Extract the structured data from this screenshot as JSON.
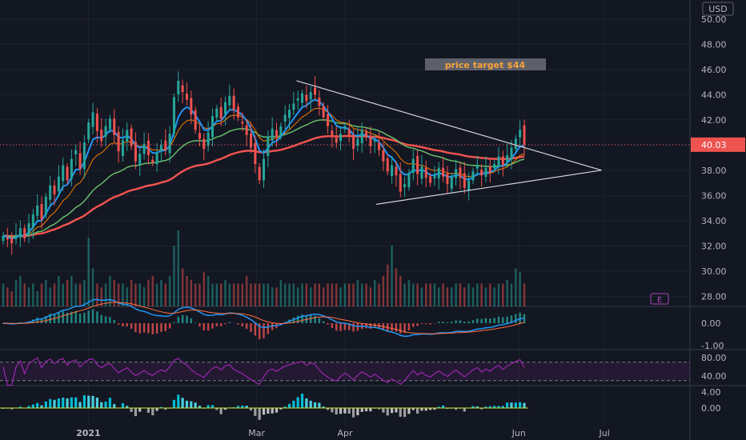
{
  "currency_label": "USD",
  "annotation": {
    "text": "price target $44",
    "color": "#f7a23b",
    "bg": "#5d606b"
  },
  "earnings_badge": {
    "text": "E",
    "color": "#ab47bc"
  },
  "months": [
    "2021",
    "Mar",
    "Apr",
    "Jun",
    "Jul"
  ],
  "colors": {
    "up": "#26a69a",
    "down": "#ef5350",
    "ema_fast": "#2196f3",
    "ema_mid": "#f57c00",
    "sma_green": "#66bb6a",
    "sma_red": "#ef5350",
    "macd": "#2196f3",
    "signal": "#ff7043",
    "rsi": "#9c27b0",
    "osc_up": "#00bcd4",
    "osc_down": "#9e9e9e"
  },
  "panels": {
    "price": {
      "ticks": [
        "50.00",
        "48.00",
        "46.00",
        "44.00",
        "42.00",
        "40.00",
        "38.00",
        "36.00",
        "34.00",
        "32.00",
        "30.00",
        "28.00"
      ],
      "last": "40.03"
    },
    "macd": {
      "ticks": [
        "0.00",
        "-1.00"
      ]
    },
    "rsi": {
      "ticks": [
        "80.00",
        "40.00"
      ]
    },
    "osc": {
      "ticks": [
        "4.00",
        "0.00"
      ]
    }
  },
  "chart_data": {
    "type": "candlestick",
    "symbol_currency": "USD",
    "x_range": [
      "2020-12-01",
      "2021-07-31"
    ],
    "ylim": [
      27.2,
      51
    ],
    "last_price": 40.03,
    "trendlines": [
      {
        "from": [
          "2021-03-15",
          45.1
        ],
        "to": [
          "2021-06-30",
          38.0
        ]
      },
      {
        "from": [
          "2021-04-12",
          35.3
        ],
        "to": [
          "2021-06-30",
          38.0
        ]
      }
    ],
    "closes": [
      32.8,
      32.5,
      32.2,
      32.9,
      33.4,
      32.6,
      33.8,
      34.5,
      35.2,
      34.1,
      35.9,
      36.8,
      36.1,
      37.5,
      38.4,
      37.2,
      38.9,
      39.6,
      38.1,
      40.2,
      41.8,
      42.6,
      41.1,
      40.3,
      41.5,
      42.1,
      40.8,
      39.5,
      40.4,
      41.2,
      39.9,
      38.7,
      39.3,
      40.1,
      39.2,
      38.6,
      39.4,
      40.0,
      39.6,
      40.9,
      43.8,
      45.1,
      44.2,
      43.6,
      42.4,
      41.2,
      40.5,
      39.7,
      41.0,
      42.3,
      42.9,
      42.1,
      43.4,
      43.9,
      42.8,
      42.2,
      41.7,
      40.8,
      39.8,
      38.5,
      37.2,
      38.9,
      40.7,
      41.3,
      40.6,
      41.5,
      42.4,
      42.8,
      43.3,
      43.7,
      44.1,
      43.5,
      44.2,
      44.0,
      43.1,
      42.2,
      41.5,
      40.7,
      40.2,
      40.9,
      41.5,
      40.8,
      39.7,
      40.5,
      41.2,
      40.6,
      39.9,
      40.4,
      39.6,
      38.7,
      37.9,
      38.4,
      37.6,
      36.3,
      36.9,
      37.8,
      38.9,
      37.7,
      38.3,
      37.4,
      37.0,
      37.6,
      38.2,
      37.5,
      36.9,
      37.5,
      38.1,
      37.4,
      36.6,
      37.2,
      37.9,
      38.4,
      37.6,
      38.2,
      37.8,
      38.5,
      39.1,
      38.4,
      39.2,
      39.8,
      40.5,
      41.2,
      40.03
    ],
    "volume_relative": [
      0.3,
      0.25,
      0.2,
      0.35,
      0.4,
      0.3,
      0.25,
      0.3,
      0.2,
      0.3,
      0.35,
      0.25,
      0.3,
      0.4,
      0.3,
      0.35,
      0.4,
      0.3,
      0.3,
      0.35,
      0.9,
      0.5,
      0.3,
      0.25,
      0.3,
      0.4,
      0.35,
      0.3,
      0.3,
      0.25,
      0.35,
      0.3,
      0.3,
      0.25,
      0.35,
      0.4,
      0.3,
      0.35,
      0.3,
      0.4,
      0.8,
      1.0,
      0.5,
      0.4,
      0.35,
      0.3,
      0.3,
      0.45,
      0.4,
      0.3,
      0.3,
      0.3,
      0.35,
      0.3,
      0.3,
      0.3,
      0.3,
      0.4,
      0.3,
      0.3,
      0.3,
      0.3,
      0.3,
      0.25,
      0.25,
      0.35,
      0.3,
      0.3,
      0.3,
      0.25,
      0.3,
      0.3,
      0.25,
      0.3,
      0.3,
      0.25,
      0.3,
      0.3,
      0.3,
      0.25,
      0.3,
      0.3,
      0.3,
      0.35,
      0.3,
      0.3,
      0.25,
      0.35,
      0.3,
      0.4,
      0.55,
      0.8,
      0.5,
      0.4,
      0.3,
      0.35,
      0.3,
      0.3,
      0.25,
      0.3,
      0.3,
      0.3,
      0.25,
      0.3,
      0.25,
      0.25,
      0.3,
      0.3,
      0.25,
      0.3,
      0.25,
      0.3,
      0.3,
      0.25,
      0.3,
      0.25,
      0.3,
      0.3,
      0.35,
      0.3,
      0.5,
      0.45,
      0.3
    ],
    "rsi": {
      "upper": 70,
      "lower": 30
    }
  }
}
